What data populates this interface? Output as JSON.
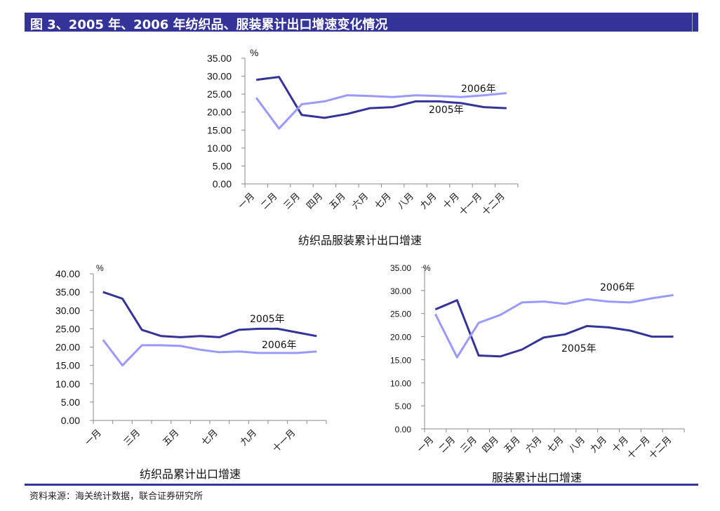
{
  "header": {
    "title": "图 3、2005 年、2006 年纺织品、服装累计出口增速变化情况"
  },
  "footer": {
    "source": "资料来源：海关统计数据，联合证券研究所"
  },
  "colors": {
    "header_bg": "#333399",
    "series_2005": "#333399",
    "series_2006": "#9999ff"
  },
  "chart_data": [
    {
      "type": "line",
      "caption": "纺织品服装累计出口增速",
      "unit": "%",
      "ylim": [
        0,
        35
      ],
      "yticks": [
        "0.00",
        "5.00",
        "10.00",
        "15.00",
        "20.00",
        "25.00",
        "30.00",
        "35.00"
      ],
      "categories": [
        "一月",
        "二月",
        "三月",
        "四月",
        "五月",
        "六月",
        "七月",
        "八月",
        "九月",
        "十月",
        "十一月",
        "十二月"
      ],
      "shown_category_labels": [
        "一月",
        "二月",
        "三月",
        "四月",
        "五月",
        "六月",
        "七月",
        "八月",
        "九月",
        "十月",
        "十一月",
        "十二月"
      ],
      "grid": false,
      "series": [
        {
          "name": "2005年",
          "values": [
            29.0,
            29.8,
            19.2,
            18.4,
            19.5,
            21.1,
            21.4,
            23.0,
            23.0,
            22.5,
            21.4,
            21.1
          ]
        },
        {
          "name": "2006年",
          "values": [
            24.0,
            15.4,
            22.2,
            23.0,
            24.7,
            24.5,
            24.2,
            24.7,
            24.5,
            24.2,
            24.7,
            25.3
          ]
        }
      ]
    },
    {
      "type": "line",
      "caption": "纺织品累计出口增速",
      "unit": "%",
      "ylim": [
        0,
        40
      ],
      "yticks": [
        "0.00",
        "5.00",
        "10.00",
        "15.00",
        "20.00",
        "25.00",
        "30.00",
        "35.00",
        "40.00"
      ],
      "categories": [
        "一月",
        "二月",
        "三月",
        "四月",
        "五月",
        "六月",
        "七月",
        "八月",
        "九月",
        "十月",
        "十一月",
        "十二月"
      ],
      "shown_category_labels": [
        "一月",
        "",
        "三月",
        "",
        "五月",
        "",
        "七月",
        "",
        "九月",
        "",
        "十一月",
        ""
      ],
      "grid": false,
      "series": [
        {
          "name": "2005年",
          "values": [
            35.0,
            33.2,
            24.7,
            23.0,
            22.7,
            23.0,
            22.7,
            24.7,
            25.0,
            25.0,
            24.0,
            23.0
          ]
        },
        {
          "name": "2006年",
          "values": [
            22.0,
            15.0,
            20.5,
            20.5,
            20.3,
            19.3,
            18.6,
            18.8,
            18.4,
            18.4,
            18.4,
            18.8
          ]
        }
      ]
    },
    {
      "type": "line",
      "caption": "服装累计出口增速",
      "unit": "%",
      "ylim": [
        0,
        35
      ],
      "yticks": [
        "0.00",
        "5.00",
        "10.00",
        "15.00",
        "20.00",
        "25.00",
        "30.00",
        "35.00"
      ],
      "categories": [
        "一月",
        "二月",
        "三月",
        "四月",
        "五月",
        "六月",
        "七月",
        "八月",
        "九月",
        "十月",
        "十一月",
        "十二月"
      ],
      "shown_category_labels": [
        "一月",
        "二月",
        "三月",
        "四月",
        "五月",
        "六月",
        "七月",
        "八月",
        "九月",
        "十月",
        "十一月",
        "十二月"
      ],
      "grid": false,
      "series": [
        {
          "name": "2005年",
          "values": [
            25.9,
            27.9,
            15.9,
            15.7,
            17.2,
            19.8,
            20.5,
            22.3,
            22.0,
            21.3,
            20.0,
            20.0
          ]
        },
        {
          "name": "2006年",
          "values": [
            24.9,
            15.5,
            23.0,
            24.7,
            27.4,
            27.6,
            27.1,
            28.1,
            27.6,
            27.4,
            28.3,
            29.0
          ]
        }
      ]
    }
  ]
}
